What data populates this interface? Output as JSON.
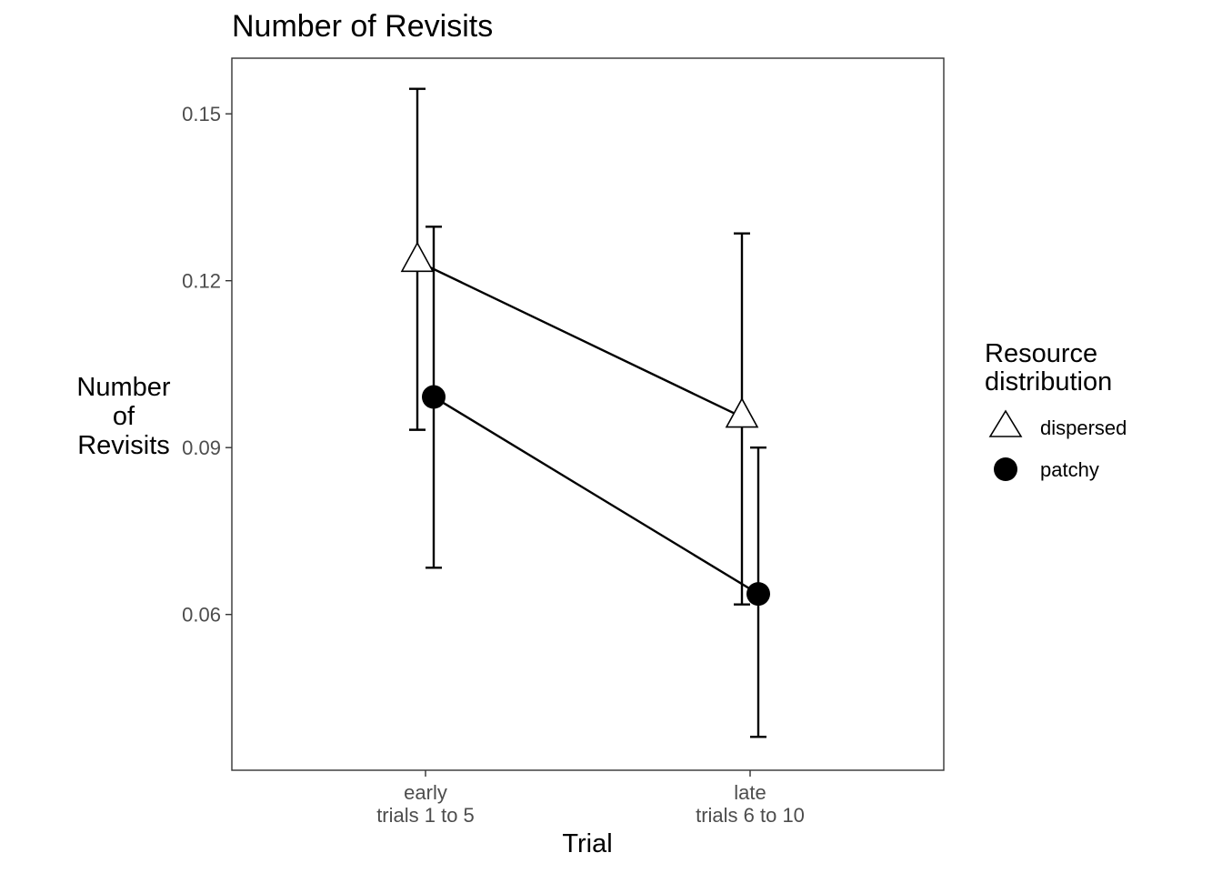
{
  "chart_data": {
    "type": "line",
    "title": "Number of Revisits",
    "xlabel": "Trial",
    "ylabel": [
      "Number",
      "of",
      "Revisits"
    ],
    "categories": [
      [
        "early",
        "trials 1 to 5"
      ],
      [
        "late",
        "trials 6 to 10"
      ]
    ],
    "yticks": [
      0.06,
      0.09,
      0.12,
      0.15
    ],
    "ytick_labels": [
      "0.06",
      "0.09",
      "0.12",
      "0.15"
    ],
    "ylim": [
      0.032,
      0.16
    ],
    "grid": false,
    "legend": {
      "title": [
        "Resource",
        "distribution"
      ],
      "position": "right"
    },
    "series": [
      {
        "name": "dispersed",
        "marker": "triangle-open",
        "color": "#000000",
        "values": [
          0.1235,
          0.0955
        ],
        "ci_low": [
          0.0932,
          0.0618
        ],
        "ci_high": [
          0.1545,
          0.1285
        ]
      },
      {
        "name": "patchy",
        "marker": "circle-filled",
        "color": "#000000",
        "values": [
          0.0991,
          0.0637
        ],
        "ci_low": [
          0.0684,
          0.038
        ],
        "ci_high": [
          0.1297,
          0.09
        ]
      }
    ]
  }
}
